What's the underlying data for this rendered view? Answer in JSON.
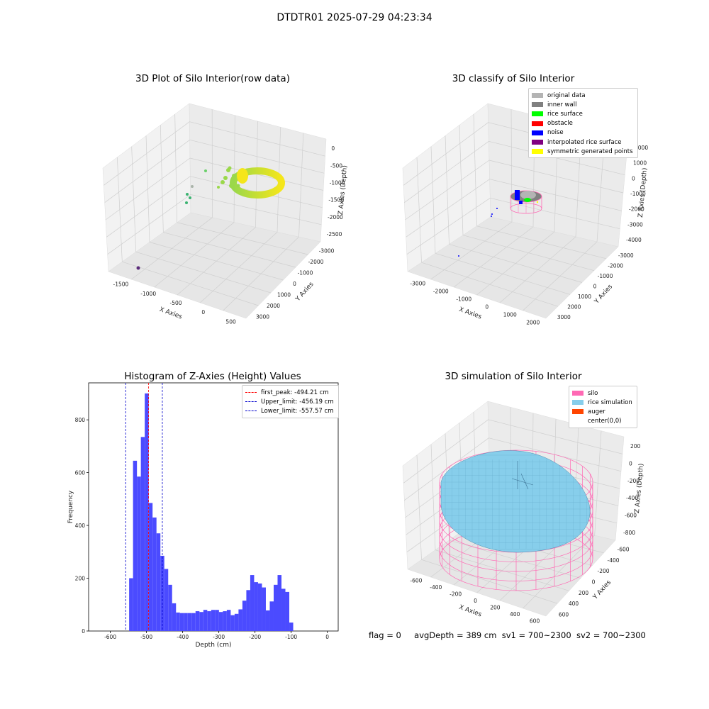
{
  "title": "DTDTR01 2025-07-29 04:23:34",
  "panels": {
    "raw": {
      "title": "3D Plot of Silo Interior(row data)",
      "xlabel": "X Axies",
      "ylabel": "Y Axies",
      "zlabel": "Z Axies (Depth)",
      "xticks": [
        "-1500",
        "-1000",
        "-500",
        "0",
        "500"
      ],
      "yticks": [
        "-3000",
        "-2000",
        "-1000",
        "0",
        "1000",
        "2000",
        "3000"
      ],
      "zticks": [
        "0",
        "-500",
        "-1000",
        "-1500",
        "-2000",
        "-2500"
      ]
    },
    "classify": {
      "title": "3D classify of Silo Interior",
      "xlabel": "X Axies",
      "ylabel": "Y Axies",
      "zlabel": "Z Axies (Depth)",
      "xticks": [
        "-3000",
        "-2000",
        "-1000",
        "0",
        "1000",
        "2000"
      ],
      "yticks": [
        "-3000",
        "-2000",
        "-1000",
        "0",
        "1000",
        "2000",
        "3000"
      ],
      "zticks": [
        "2000",
        "1000",
        "0",
        "-1000",
        "-2000",
        "-3000",
        "-4000"
      ],
      "legend": [
        {
          "label": "original data",
          "color": "#b4b4b4"
        },
        {
          "label": "inner wall",
          "color": "#808080"
        },
        {
          "label": "rice surface",
          "color": "#00ff00"
        },
        {
          "label": "obstacle",
          "color": "#ff0000"
        },
        {
          "label": "noise",
          "color": "#0000ff"
        },
        {
          "label": "interpolated rice surface",
          "color": "#800080"
        },
        {
          "label": "symmetric generated points",
          "color": "#ffff00"
        }
      ]
    },
    "simulation": {
      "title": "3D simulation of Silo Interior",
      "xlabel": "X Axies",
      "ylabel": "Y Axies",
      "zlabel": "Z Axies (Depth)",
      "xticks": [
        "-600",
        "-400",
        "-200",
        "0",
        "200",
        "400",
        "600"
      ],
      "yticks": [
        "-600",
        "-400",
        "-200",
        "0",
        "200",
        "400",
        "600"
      ],
      "zticks": [
        "200",
        "0",
        "-200",
        "-400",
        "-600",
        "-800"
      ],
      "legend": [
        {
          "label": "silo",
          "color": "#ff69b4"
        },
        {
          "label": "rice simulation",
          "color": "#87ceeb"
        },
        {
          "label": "auger",
          "color": "#ff4500"
        },
        {
          "label": "center(0,0)",
          "color": "#ffffff"
        }
      ]
    }
  },
  "chart_data": {
    "type": "bar",
    "title": "Histogram of Z-Axies (Height) Values",
    "xlabel": "Depth (cm)",
    "ylabel": "Frequency",
    "xlim": [
      -660,
      30
    ],
    "ylim": [
      0,
      940
    ],
    "xticks": [
      -600,
      -500,
      -400,
      -300,
      -200,
      -100,
      0
    ],
    "yticks": [
      0,
      200,
      400,
      600,
      800
    ],
    "bar_color": "#4b4bff",
    "bins": {
      "start": -548,
      "width": 10.8,
      "values": [
        200,
        645,
        585,
        735,
        900,
        485,
        430,
        370,
        285,
        235,
        175,
        105,
        70,
        68,
        68,
        68,
        68,
        75,
        72,
        80,
        75,
        80,
        80,
        72,
        75,
        80,
        60,
        65,
        82,
        115,
        155,
        212,
        185,
        180,
        165,
        78,
        112,
        175,
        212,
        160,
        148,
        32
      ]
    },
    "lines": [
      {
        "name": "first_peak",
        "value": -494.21,
        "label": "first_peak: -494.21 cm",
        "color": "#ff0000"
      },
      {
        "name": "Upper_limit",
        "value": -456.19,
        "label": "Upper_limit: -456.19 cm",
        "color": "#0000cc"
      },
      {
        "name": "Lower_limit",
        "value": -557.57,
        "label": "Lower_limit: -557.57 cm",
        "color": "#0000cc"
      }
    ]
  },
  "footer": {
    "flag": "flag = 0",
    "avg": "avgDepth = 389 cm",
    "sv1": "sv1 = 700~2300",
    "sv2": "sv2 = 700~2300"
  }
}
